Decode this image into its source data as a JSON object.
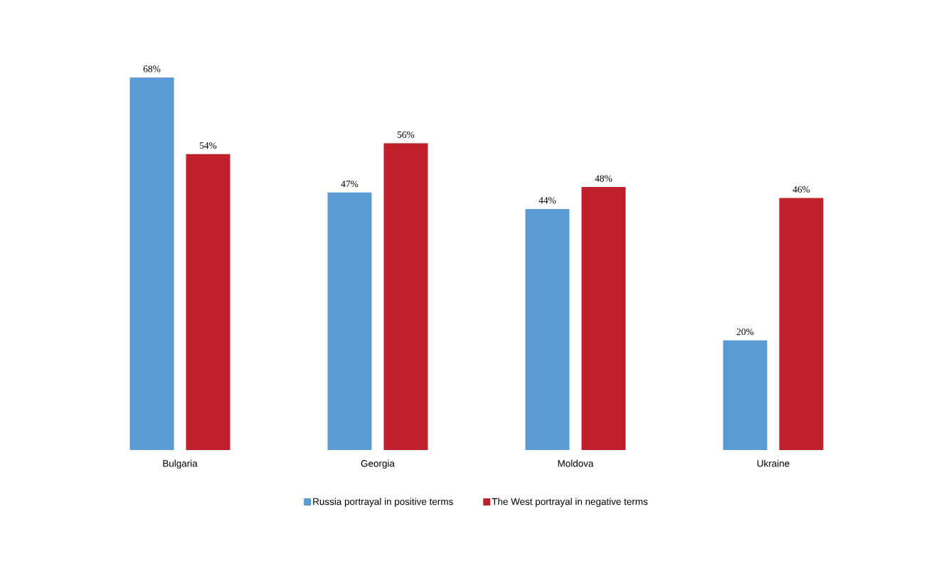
{
  "chart_data": {
    "type": "bar",
    "categories": [
      "Bulgaria",
      "Georgia",
      "Moldova",
      "Ukraine"
    ],
    "series": [
      {
        "name": "Russia portrayal in positive terms",
        "color": "#5b9bd5",
        "values": [
          68,
          47,
          44,
          20
        ],
        "value_labels": [
          "68%",
          "47%",
          "44%",
          "20%"
        ]
      },
      {
        "name": "The West portrayal in negative terms",
        "color": "#c0202a",
        "values": [
          54,
          56,
          48,
          46
        ],
        "value_labels": [
          "54%",
          "56%",
          "48%",
          "46%"
        ]
      }
    ],
    "legend": "bottom"
  }
}
